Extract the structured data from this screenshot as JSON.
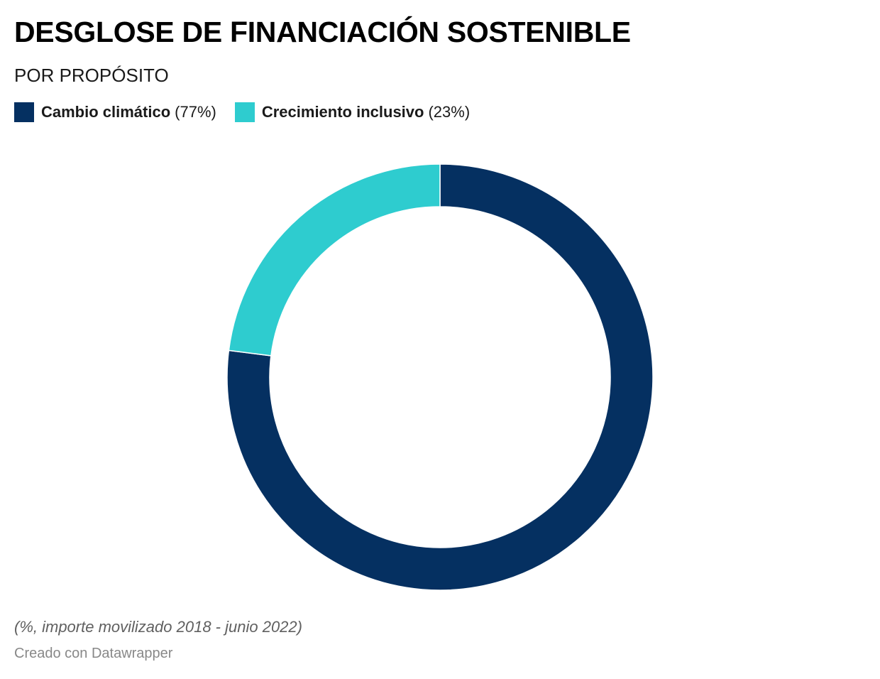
{
  "chart_data": {
    "type": "pie",
    "variant": "donut",
    "title": "DESGLOSE DE FINANCIACIÓN SOSTENIBLE",
    "subtitle": "POR PROPÓSITO",
    "categories": [
      "Cambio climático",
      "Crecimiento inclusivo"
    ],
    "values": [
      77,
      23
    ],
    "legend": {
      "placement": "top-left",
      "entries": [
        {
          "label": "Cambio climático",
          "share": "(77%)",
          "color": "#053061"
        },
        {
          "label": "Crecimiento inclusivo",
          "share": "(23%)",
          "color": "#2ecccf"
        }
      ]
    },
    "colors": [
      "#053061",
      "#2ecccf"
    ],
    "notes": "(%, importe movilizado 2018 - junio 2022)",
    "credit": "Creado con Datawrapper"
  }
}
